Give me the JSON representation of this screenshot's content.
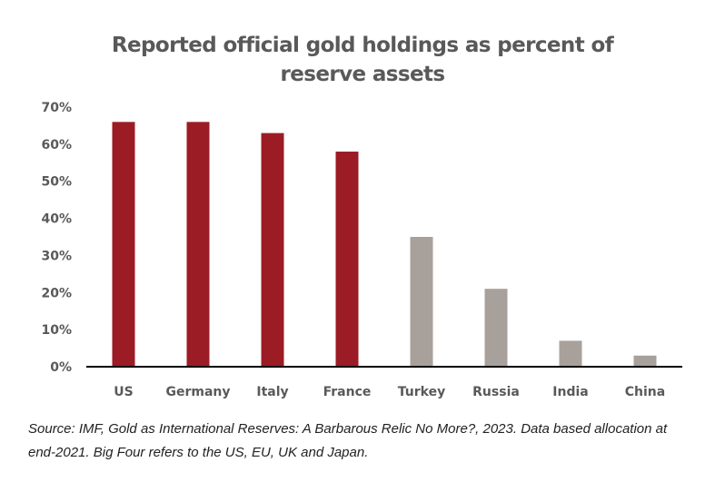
{
  "chart_data": {
    "type": "bar",
    "title_line1": "Reported official gold holdings as percent of",
    "title_line2": "reserve assets",
    "categories": [
      "US",
      "Germany",
      "Italy",
      "France",
      "Turkey",
      "Russia",
      "India",
      "China"
    ],
    "values": [
      66,
      66,
      63,
      58,
      35,
      21,
      7,
      3
    ],
    "colors": [
      "#9b1c24",
      "#9b1c24",
      "#9b1c24",
      "#9b1c24",
      "#a8a09b",
      "#a8a09b",
      "#a8a09b",
      "#a8a09b"
    ],
    "ylim": [
      0,
      70
    ],
    "yticks": [
      "0%",
      "10%",
      "20%",
      "30%",
      "40%",
      "50%",
      "60%",
      "70%"
    ],
    "xlabel": "",
    "ylabel": "",
    "grid": false,
    "axis_color": "#000000"
  },
  "source_line1": "Source: IMF, Gold as International Reserves: A Barbarous Relic No More?, 2023. Data based allocation at",
  "source_line2": "end-2021. Big Four refers to the US, EU, UK and Japan."
}
